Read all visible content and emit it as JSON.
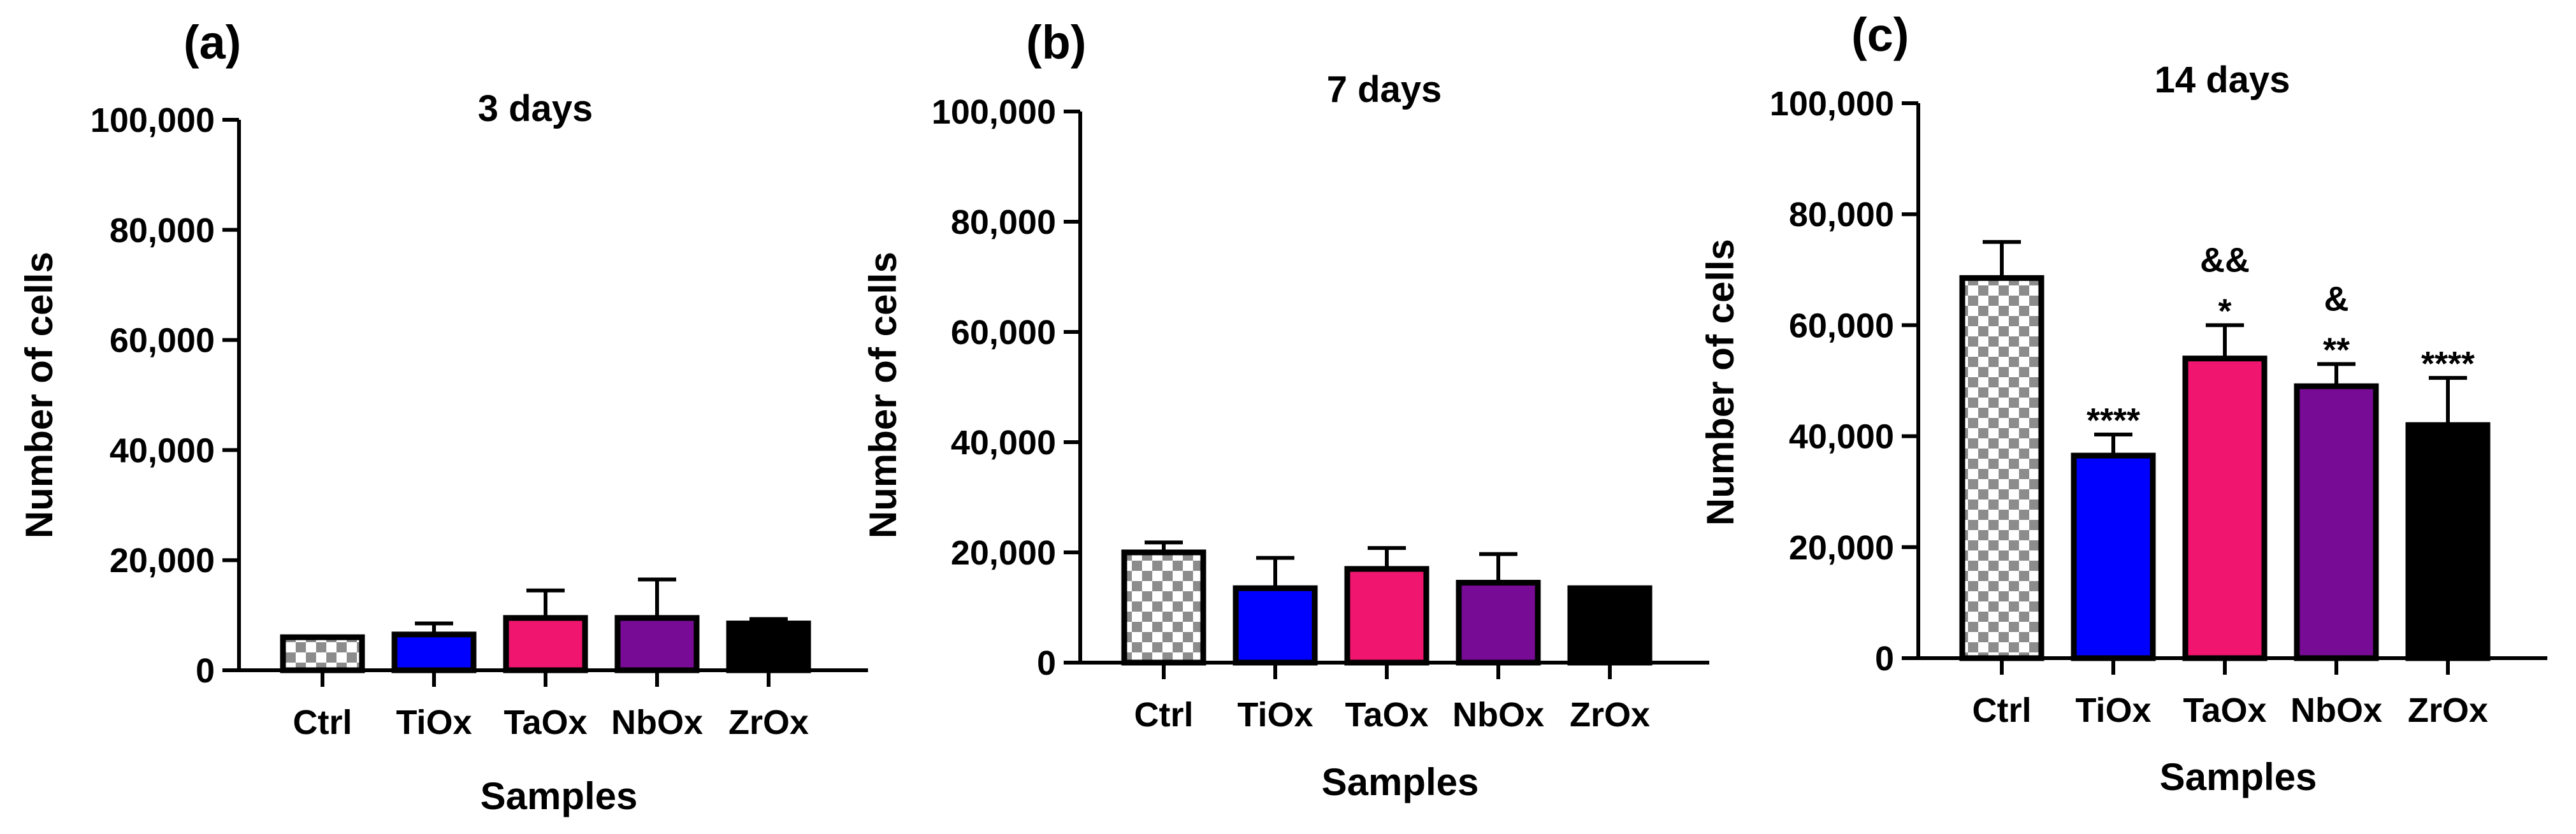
{
  "chart_data": [
    {
      "panel_label": "(a)",
      "type": "bar",
      "title": "3 days",
      "xlabel": "Samples",
      "ylabel": "Number of cells",
      "ylim": [
        0,
        100000
      ],
      "yticks": [
        0,
        20000,
        40000,
        60000,
        80000,
        100000
      ],
      "ytick_labels": [
        "0",
        "20,000",
        "40,000",
        "60,000",
        "80,000",
        "100,000"
      ],
      "categories": [
        "Ctrl",
        "TiOx",
        "TaOx",
        "NbOx",
        "ZrOx"
      ],
      "values": [
        6000,
        6500,
        9500,
        9500,
        8500
      ],
      "errors": [
        0,
        2000,
        5000,
        7000,
        800
      ],
      "significance": [
        [],
        [],
        [],
        [],
        []
      ]
    },
    {
      "panel_label": "(b)",
      "type": "bar",
      "title": "7 days",
      "xlabel": "Samples",
      "ylabel": "Number of cells",
      "ylim": [
        0,
        100000
      ],
      "yticks": [
        0,
        20000,
        40000,
        60000,
        80000,
        100000
      ],
      "ytick_labels": [
        "0",
        "20,000",
        "40,000",
        "60,000",
        "80,000",
        "100,000"
      ],
      "categories": [
        "Ctrl",
        "TiOx",
        "TaOx",
        "NbOx",
        "ZrOx"
      ],
      "values": [
        20000,
        13500,
        17000,
        14500,
        13500
      ],
      "errors": [
        1800,
        5500,
        3800,
        5200,
        0
      ],
      "significance": [
        [],
        [],
        [],
        [],
        []
      ]
    },
    {
      "panel_label": "(c)",
      "type": "bar",
      "title": "14 days",
      "xlabel": "Samples",
      "ylabel": "Number of cells",
      "ylim": [
        0,
        100000
      ],
      "yticks": [
        0,
        20000,
        40000,
        60000,
        80000,
        100000
      ],
      "ytick_labels": [
        "0",
        "20,000",
        "40,000",
        "60,000",
        "80,000",
        "100,000"
      ],
      "categories": [
        "Ctrl",
        "TiOx",
        "TaOx",
        "NbOx",
        "ZrOx"
      ],
      "values": [
        68500,
        36500,
        54000,
        49000,
        42000
      ],
      "errors": [
        6500,
        3800,
        6000,
        4000,
        8500
      ],
      "significance": [
        [],
        [
          "****"
        ],
        [
          "*",
          "&&"
        ],
        [
          "**",
          "&"
        ],
        [
          "****"
        ]
      ]
    }
  ],
  "bar_colors": [
    "checkered",
    "#0000ff",
    "#f0166f",
    "#780b96",
    "#000000"
  ],
  "checker_colors": [
    "#ffffff",
    "#8c8c8c"
  ]
}
